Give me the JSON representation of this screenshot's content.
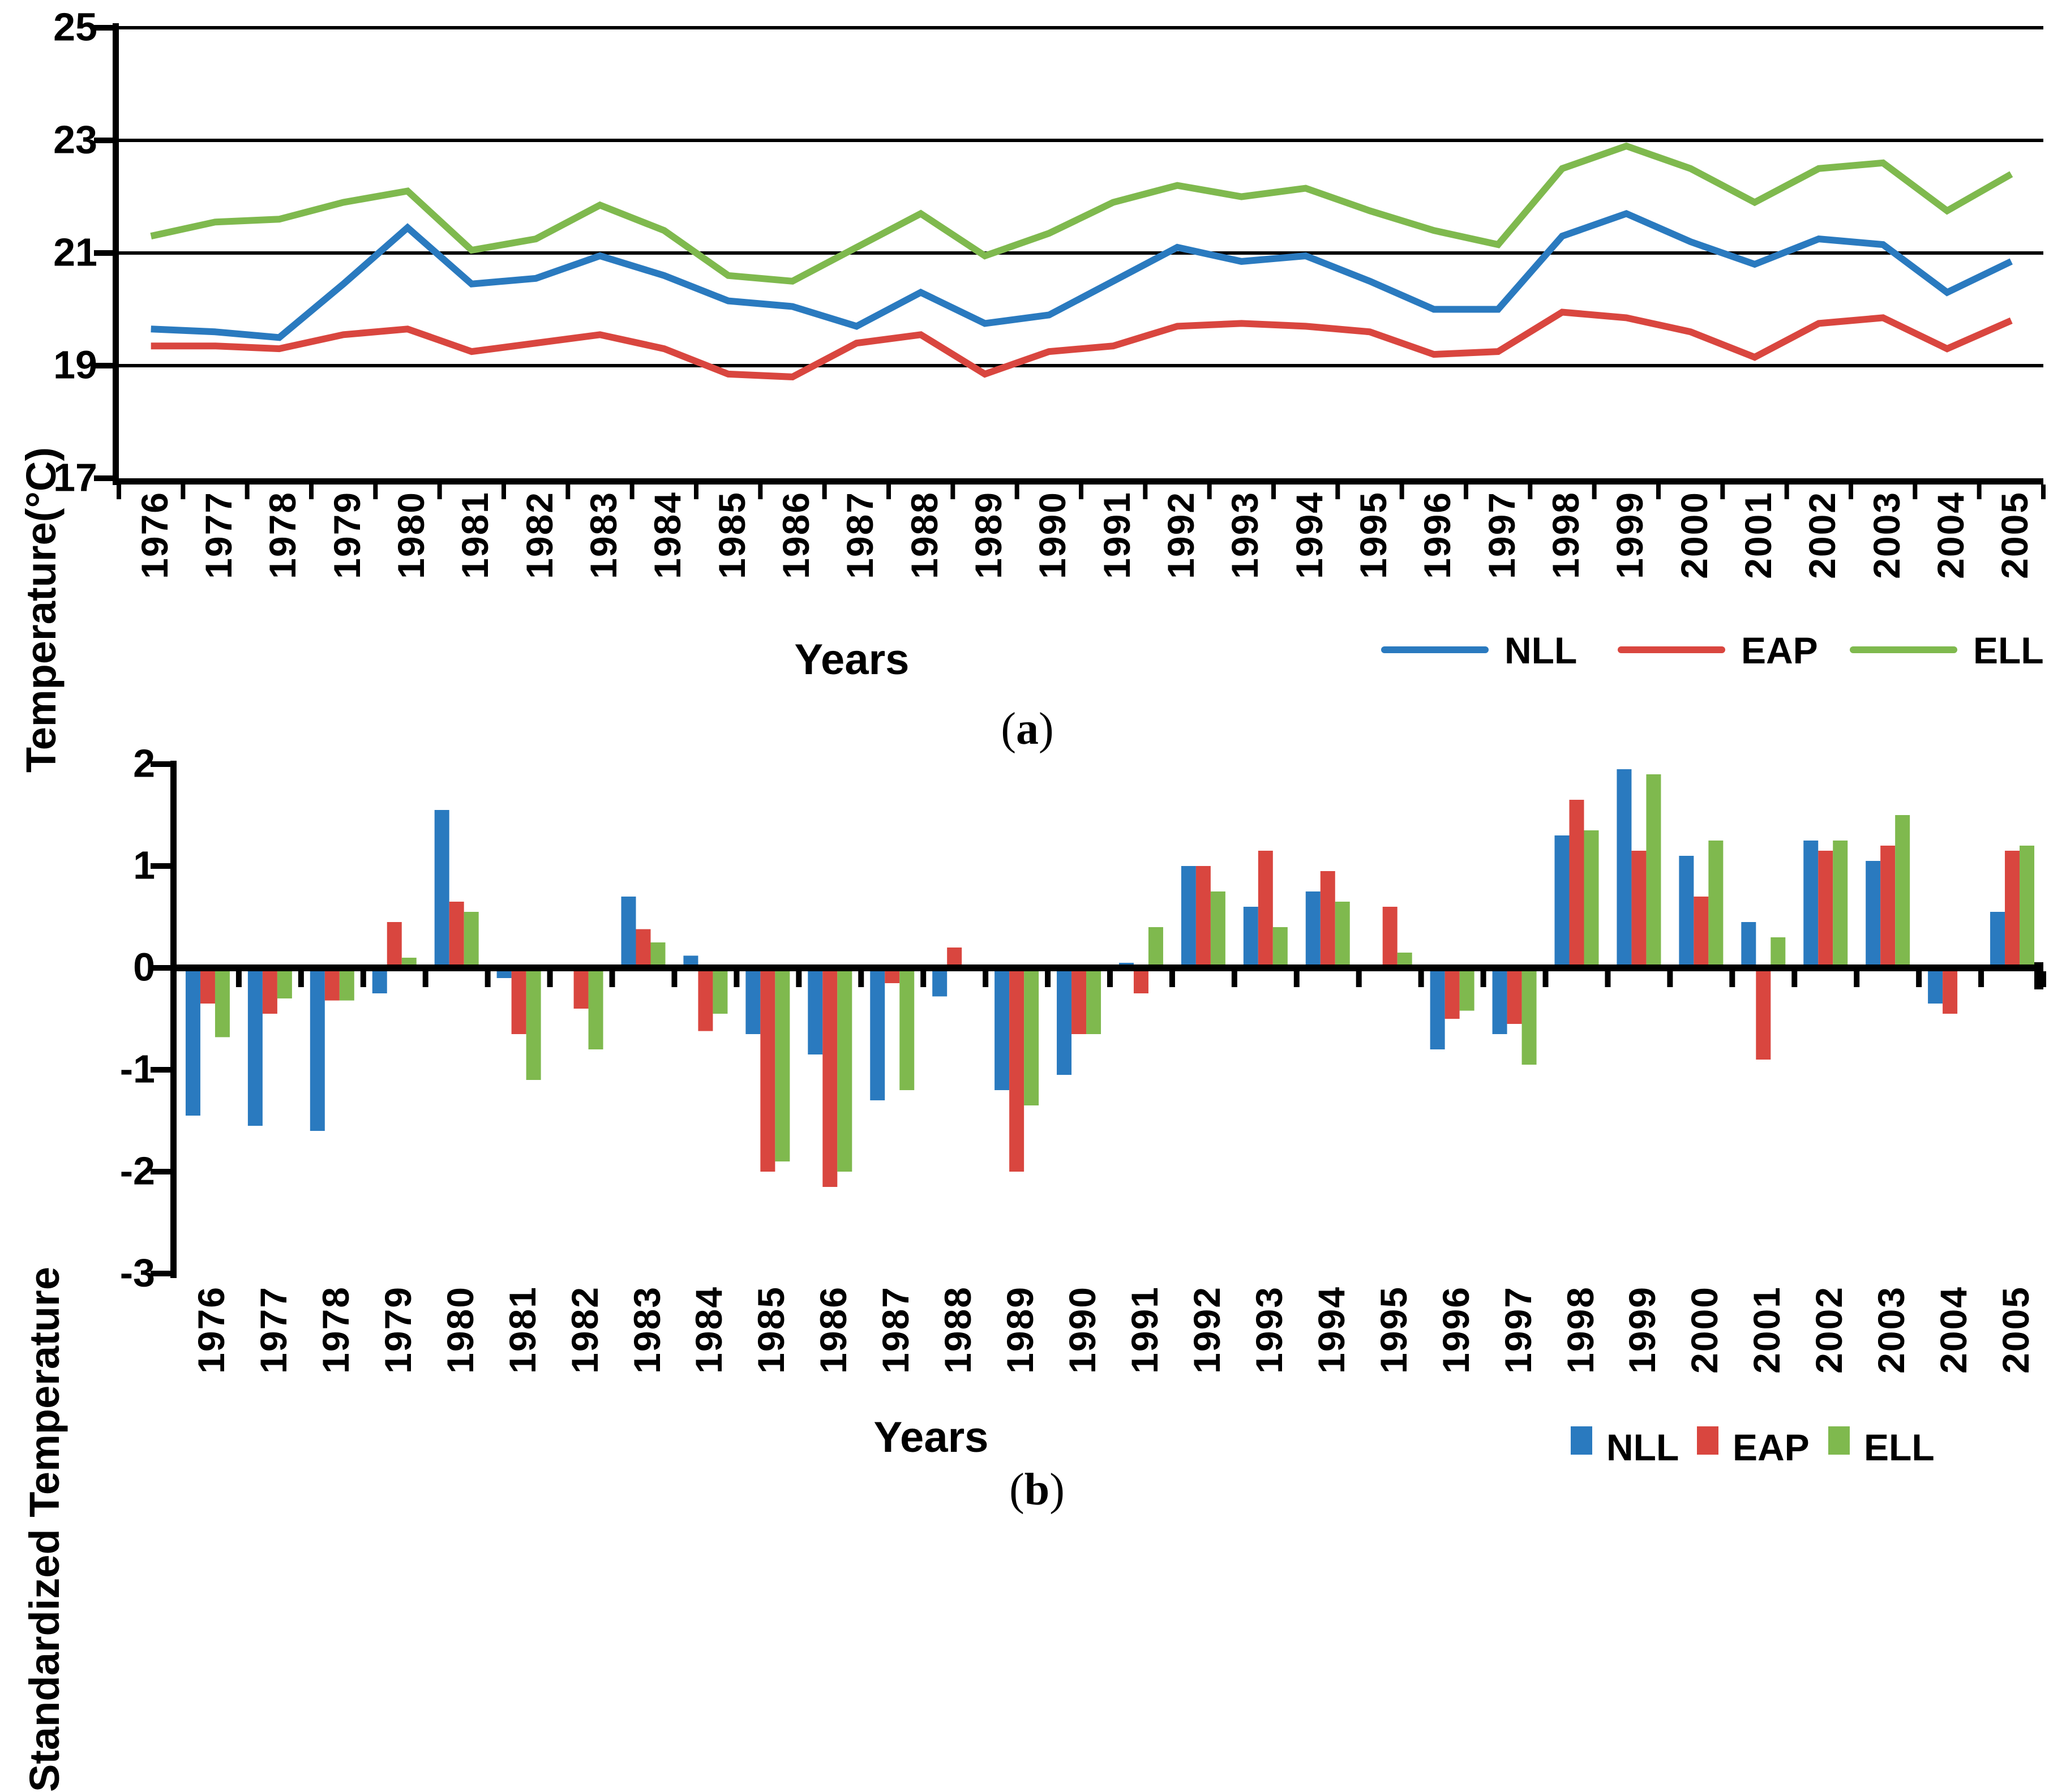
{
  "colors": {
    "NLL": "#2A7ABF",
    "EAP": "#D9463F",
    "ELL": "#7FB94E",
    "axis": "#000000",
    "background": "#ffffff"
  },
  "chart_data": [
    {
      "id": "a",
      "type": "line",
      "caption": {
        "open": "(",
        "letter": "a",
        "close": ")"
      },
      "xlabel": "Years",
      "ylabel": "Temperature(°C)",
      "ylim": [
        17,
        25
      ],
      "yticks": [
        25,
        23,
        21,
        19,
        17
      ],
      "gridlines": [
        25,
        23,
        21,
        19
      ],
      "grid": "horizontal",
      "legend_position": "bottom-right",
      "categories": [
        "1976",
        "1977",
        "1978",
        "1979",
        "1980",
        "1981",
        "1982",
        "1983",
        "1984",
        "1985",
        "1986",
        "1987",
        "1988",
        "1989",
        "1990",
        "1991",
        "1992",
        "1993",
        "1994",
        "1995",
        "1996",
        "1997",
        "1998",
        "1999",
        "2000",
        "2001",
        "2002",
        "2003",
        "2004",
        "2005"
      ],
      "series": [
        {
          "name": "NLL",
          "color": "NLL",
          "values": [
            19.65,
            19.6,
            19.5,
            20.45,
            21.45,
            20.45,
            20.55,
            20.95,
            20.6,
            20.15,
            20.05,
            19.7,
            20.3,
            19.75,
            19.9,
            20.5,
            21.1,
            20.85,
            20.95,
            20.5,
            20.0,
            20.0,
            21.3,
            21.7,
            21.2,
            20.8,
            21.25,
            21.15,
            20.3,
            20.85
          ]
        },
        {
          "name": "EAP",
          "color": "EAP",
          "values": [
            19.35,
            19.35,
            19.3,
            19.55,
            19.65,
            19.25,
            19.4,
            19.55,
            19.3,
            18.85,
            18.8,
            19.4,
            19.55,
            18.85,
            19.25,
            19.35,
            19.7,
            19.75,
            19.7,
            19.6,
            19.2,
            19.25,
            19.95,
            19.85,
            19.6,
            19.15,
            19.75,
            19.85,
            19.3,
            19.8
          ]
        },
        {
          "name": "ELL",
          "color": "ELL",
          "values": [
            21.3,
            21.55,
            21.6,
            21.9,
            22.1,
            21.05,
            21.25,
            21.85,
            21.4,
            20.6,
            20.5,
            21.1,
            21.7,
            20.95,
            21.35,
            21.9,
            22.2,
            22.0,
            22.15,
            21.75,
            21.4,
            21.15,
            22.5,
            22.9,
            22.5,
            21.9,
            22.5,
            22.6,
            21.75,
            22.4
          ]
        }
      ]
    },
    {
      "id": "b",
      "type": "bar",
      "caption": {
        "open": "(",
        "letter": "b",
        "close": ")"
      },
      "xlabel": "Years",
      "ylabel": "Standardized Temperature",
      "ylim": [
        -3,
        2
      ],
      "yticks": [
        2,
        1,
        0,
        -1,
        -2,
        -3
      ],
      "gridlines": [],
      "legend_position": "bottom-right",
      "categories": [
        "1976",
        "1977",
        "1978",
        "1979",
        "1980",
        "1981",
        "1982",
        "1983",
        "1984",
        "1985",
        "1986",
        "1987",
        "1988",
        "1989",
        "1990",
        "1991",
        "1992",
        "1993",
        "1994",
        "1995",
        "1996",
        "1997",
        "1998",
        "1999",
        "2000",
        "2001",
        "2002",
        "2003",
        "2004",
        "2005"
      ],
      "series": [
        {
          "name": "NLL",
          "color": "NLL",
          "values": [
            -1.45,
            -1.55,
            -1.6,
            -0.25,
            1.55,
            -0.1,
            0,
            0.7,
            0.12,
            -0.65,
            -0.85,
            -1.3,
            -0.28,
            -1.2,
            -1.05,
            0.05,
            1.0,
            0.6,
            0.75,
            0,
            -0.8,
            -0.65,
            1.3,
            1.95,
            1.1,
            0.45,
            1.25,
            1.05,
            -0.35,
            0.55
          ]
        },
        {
          "name": "EAP",
          "color": "EAP",
          "values": [
            -0.35,
            -0.45,
            -0.32,
            0.45,
            0.65,
            -0.65,
            -0.4,
            0.38,
            -0.62,
            -2.0,
            -2.15,
            -0.15,
            0.2,
            -2.0,
            -0.65,
            -0.25,
            1.0,
            1.15,
            0.95,
            0.6,
            -0.5,
            -0.55,
            1.65,
            1.15,
            0.7,
            -0.9,
            1.15,
            1.2,
            -0.45,
            1.15
          ]
        },
        {
          "name": "ELL",
          "color": "ELL",
          "values": [
            -0.68,
            -0.3,
            -0.32,
            0.1,
            0.55,
            -1.1,
            -0.8,
            0.25,
            -0.45,
            -1.9,
            -2.0,
            -1.2,
            0,
            -1.35,
            -0.65,
            0.4,
            0.75,
            0.4,
            0.65,
            0.15,
            -0.42,
            -0.95,
            1.35,
            1.9,
            1.25,
            0.3,
            1.25,
            1.5,
            0,
            1.2
          ]
        }
      ]
    }
  ]
}
